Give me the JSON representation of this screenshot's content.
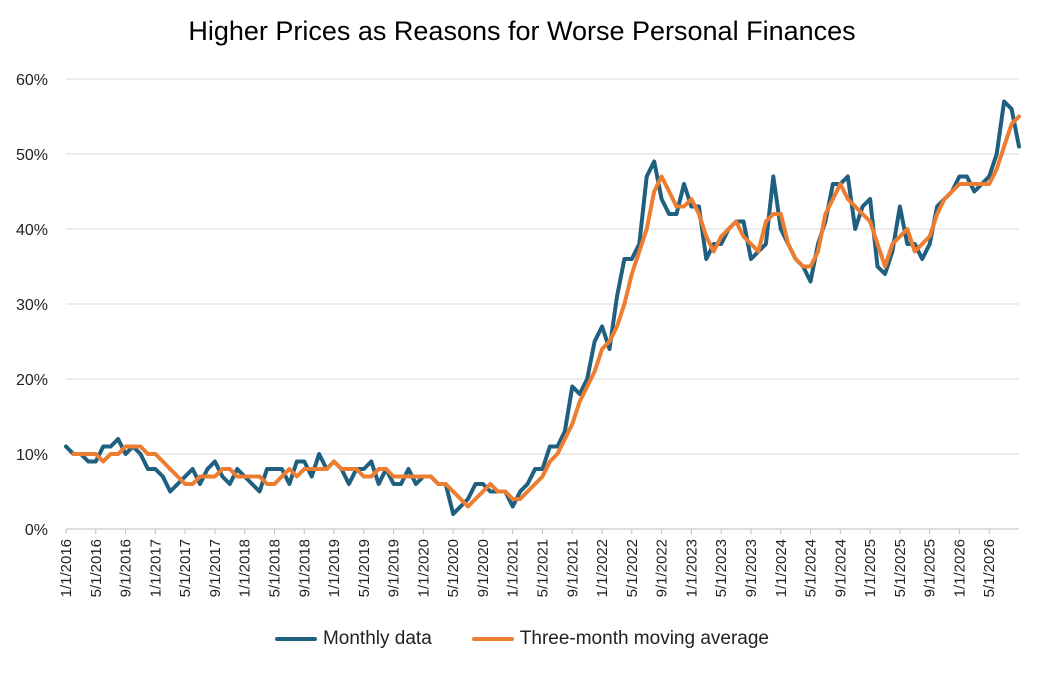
{
  "chart_data": {
    "type": "line",
    "title": "Higher Prices as Reasons for Worse Personal Finances",
    "xlabel": "",
    "ylabel": "",
    "ylim": [
      0,
      60
    ],
    "y_ticks": [
      "0%",
      "10%",
      "20%",
      "30%",
      "40%",
      "50%",
      "60%"
    ],
    "x_tick_labels": [
      "1/1/2016",
      "5/1/2016",
      "9/1/2016",
      "1/1/2017",
      "5/1/2017",
      "9/1/2017",
      "1/1/2018",
      "5/1/2018",
      "9/1/2018",
      "1/1/2019",
      "5/1/2019",
      "9/1/2019",
      "1/1/2020",
      "5/1/2020",
      "9/1/2020",
      "1/1/2021",
      "5/1/2021",
      "9/1/2021",
      "1/1/2022",
      "5/1/2022",
      "9/1/2022",
      "1/1/2023",
      "5/1/2023",
      "9/1/2023",
      "1/1/2024",
      "5/1/2024",
      "9/1/2024",
      "1/1/2025",
      "5/1/2025",
      "9/1/2025",
      "1/1/2026",
      "5/1/2026"
    ],
    "x_start": "1/1/2016",
    "x_end": "7/1/2026",
    "grid": true,
    "legend_position": "bottom",
    "series": [
      {
        "name": "Monthly data",
        "color": "#1f5f7f",
        "values": [
          11,
          10,
          10,
          9,
          9,
          11,
          11,
          12,
          10,
          11,
          10,
          8,
          8,
          7,
          5,
          6,
          7,
          8,
          6,
          8,
          9,
          7,
          6,
          8,
          7,
          6,
          5,
          8,
          8,
          8,
          6,
          9,
          9,
          7,
          10,
          8,
          9,
          8,
          6,
          8,
          8,
          9,
          6,
          8,
          6,
          6,
          8,
          6,
          7,
          7,
          6,
          6,
          2,
          3,
          4,
          6,
          6,
          5,
          5,
          5,
          3,
          5,
          6,
          8,
          8,
          11,
          11,
          13,
          19,
          18,
          20,
          25,
          27,
          24,
          31,
          36,
          36,
          38,
          47,
          49,
          44,
          42,
          42,
          46,
          43,
          43,
          36,
          38,
          38,
          40,
          41,
          41,
          36,
          37,
          38,
          47,
          40,
          38,
          36,
          35,
          33,
          38,
          41,
          46,
          46,
          47,
          40,
          43,
          44,
          35,
          34,
          37,
          43,
          38,
          38,
          36,
          38,
          43,
          44,
          45,
          47,
          47,
          45,
          46,
          47,
          50,
          57,
          56,
          51
        ],
        "last_x": "7/1/2026"
      },
      {
        "name": "Three-month moving average",
        "color": "#ed7d31",
        "values": [
          10,
          10,
          10,
          10,
          9,
          10,
          10,
          11,
          11,
          11,
          10,
          10,
          9,
          8,
          7,
          6,
          6,
          7,
          7,
          7,
          8,
          8,
          7,
          7,
          7,
          7,
          6,
          6,
          7,
          8,
          7,
          8,
          8,
          8,
          8,
          9,
          8,
          8,
          8,
          7,
          7,
          8,
          8,
          7,
          7,
          7,
          7,
          7,
          7,
          6,
          6,
          5,
          4,
          3,
          4,
          5,
          6,
          5,
          5,
          4,
          4,
          5,
          6,
          7,
          9,
          10,
          12,
          14,
          17,
          19,
          21,
          24,
          25,
          27,
          30,
          34,
          37,
          40,
          45,
          47,
          45,
          43,
          43,
          44,
          42,
          39,
          37,
          39,
          40,
          41,
          39,
          38,
          37,
          41,
          42,
          42,
          38,
          36,
          35,
          35,
          37,
          42,
          44,
          46,
          44,
          43,
          42,
          41,
          38,
          35,
          38,
          39,
          40,
          37,
          38,
          39,
          42,
          44,
          45,
          46,
          46,
          46,
          46,
          46,
          48,
          51,
          54,
          55
        ],
        "last_x": "7/1/2026"
      }
    ]
  }
}
